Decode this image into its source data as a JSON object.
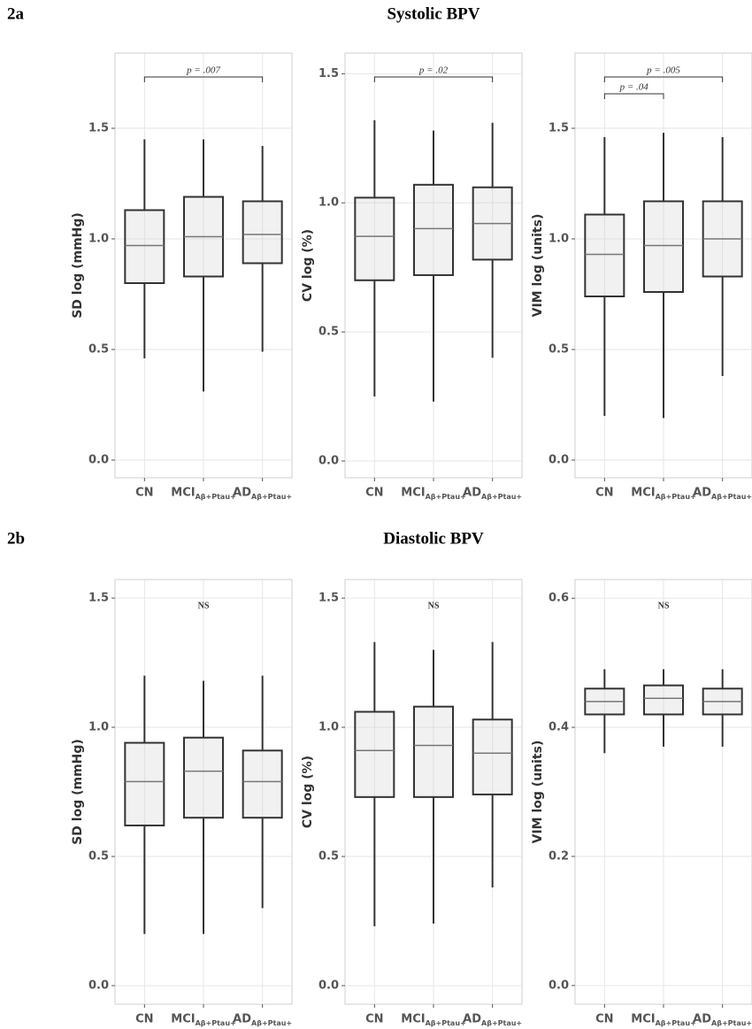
{
  "sections": [
    {
      "label": "2a",
      "title": "Systolic BPV"
    },
    {
      "label": "2b",
      "title": "Diastolic BPV"
    }
  ],
  "chart_data": [
    {
      "type": "box",
      "ylabel": "SD log (mmHg)",
      "categories": [
        "CN",
        "MCI",
        "AD"
      ],
      "category_subscripts": [
        null,
        "Aβ+Ptau+",
        "Aβ+Ptau+"
      ],
      "ylim": [
        -0.08,
        1.84
      ],
      "yticks": [
        {
          "value": 0,
          "label": "0.0"
        },
        {
          "value": 0.5,
          "label": "0.5"
        },
        {
          "value": 1,
          "label": "1.0"
        },
        {
          "value": 1.5,
          "label": "1.5"
        }
      ],
      "grid": true,
      "boxes": [
        {
          "low": 0.46,
          "q1": 0.8,
          "median": 0.97,
          "q3": 1.13,
          "high": 1.45
        },
        {
          "low": 0.31,
          "q1": 0.83,
          "median": 1.01,
          "q3": 1.19,
          "high": 1.45
        },
        {
          "low": 0.49,
          "q1": 0.89,
          "median": 1.02,
          "q3": 1.17,
          "high": 1.42
        }
      ],
      "brackets": [
        {
          "from": "CN",
          "to": "AD",
          "label": "p = .007"
        }
      ]
    },
    {
      "type": "box",
      "ylabel": "CV log (%)",
      "categories": [
        "CN",
        "MCI",
        "AD"
      ],
      "category_subscripts": [
        null,
        "Aβ+Ptau+",
        "Aβ+Ptau+"
      ],
      "ylim": [
        -0.065,
        1.58
      ],
      "yticks": [
        {
          "value": 0,
          "label": "0.0"
        },
        {
          "value": 0.5,
          "label": "0.5"
        },
        {
          "value": 1,
          "label": "1.0"
        },
        {
          "value": 1.5,
          "label": "1.5"
        }
      ],
      "grid": true,
      "boxes": [
        {
          "low": 0.25,
          "q1": 0.7,
          "median": 0.87,
          "q3": 1.02,
          "high": 1.32
        },
        {
          "low": 0.23,
          "q1": 0.72,
          "median": 0.9,
          "q3": 1.07,
          "high": 1.28
        },
        {
          "low": 0.4,
          "q1": 0.78,
          "median": 0.92,
          "q3": 1.06,
          "high": 1.31
        }
      ],
      "brackets": [
        {
          "from": "CN",
          "to": "AD",
          "label": "p = .02"
        }
      ]
    },
    {
      "type": "box",
      "ylabel": "VIM log (units)",
      "categories": [
        "CN",
        "MCI",
        "AD"
      ],
      "category_subscripts": [
        null,
        "Aβ+Ptau+",
        "Aβ+Ptau+"
      ],
      "ylim": [
        -0.08,
        1.84
      ],
      "yticks": [
        {
          "value": 0,
          "label": "0.0"
        },
        {
          "value": 0.5,
          "label": "0.5"
        },
        {
          "value": 1,
          "label": "1.0"
        },
        {
          "value": 1.5,
          "label": "1.5"
        }
      ],
      "grid": true,
      "boxes": [
        {
          "low": 0.2,
          "q1": 0.74,
          "median": 0.93,
          "q3": 1.11,
          "high": 1.46
        },
        {
          "low": 0.19,
          "q1": 0.76,
          "median": 0.97,
          "q3": 1.17,
          "high": 1.48
        },
        {
          "low": 0.38,
          "q1": 0.83,
          "median": 1.0,
          "q3": 1.17,
          "high": 1.46
        }
      ],
      "brackets": [
        {
          "from": "CN",
          "to": "AD",
          "label": "p = .005"
        },
        {
          "from": "CN",
          "to": "MCI",
          "label": "p = .04"
        }
      ]
    },
    {
      "type": "box",
      "ylabel": "SD log (mmHg)",
      "categories": [
        "CN",
        "MCI",
        "AD"
      ],
      "category_subscripts": [
        null,
        "Aβ+Ptau+",
        "Aβ+Ptau+"
      ],
      "ylim": [
        -0.072,
        1.572
      ],
      "yticks": [
        {
          "value": 0,
          "label": "0.0"
        },
        {
          "value": 0.5,
          "label": "0.5"
        },
        {
          "value": 1,
          "label": "1.0"
        },
        {
          "value": 1.5,
          "label": "1.5"
        }
      ],
      "grid": true,
      "boxes": [
        {
          "low": 0.2,
          "q1": 0.62,
          "median": 0.79,
          "q3": 0.94,
          "high": 1.2
        },
        {
          "low": 0.2,
          "q1": 0.65,
          "median": 0.83,
          "q3": 0.96,
          "high": 1.18
        },
        {
          "low": 0.3,
          "q1": 0.65,
          "median": 0.79,
          "q3": 0.91,
          "high": 1.2
        }
      ],
      "annotation": "NS"
    },
    {
      "type": "box",
      "ylabel": "CV log (%)",
      "categories": [
        "CN",
        "MCI",
        "AD"
      ],
      "category_subscripts": [
        null,
        "Aβ+Ptau+",
        "Aβ+Ptau+"
      ],
      "ylim": [
        -0.072,
        1.572
      ],
      "yticks": [
        {
          "value": 0,
          "label": "0.0"
        },
        {
          "value": 0.5,
          "label": "0.5"
        },
        {
          "value": 1,
          "label": "1.0"
        },
        {
          "value": 1.5,
          "label": "1.5"
        }
      ],
      "grid": true,
      "boxes": [
        {
          "low": 0.23,
          "q1": 0.73,
          "median": 0.91,
          "q3": 1.06,
          "high": 1.33
        },
        {
          "low": 0.24,
          "q1": 0.73,
          "median": 0.93,
          "q3": 1.08,
          "high": 1.3
        },
        {
          "low": 0.38,
          "q1": 0.74,
          "median": 0.9,
          "q3": 1.03,
          "high": 1.33
        }
      ],
      "annotation": "NS"
    },
    {
      "type": "box",
      "ylabel": "VIM log (units)",
      "categories": [
        "CN",
        "MCI",
        "AD"
      ],
      "category_subscripts": [
        null,
        "Aβ+Ptau+",
        "Aβ+Ptau+"
      ],
      "ylim": [
        -0.029,
        0.629
      ],
      "yticks": [
        {
          "value": 0,
          "label": "0.0"
        },
        {
          "value": 0.2,
          "label": "0.2"
        },
        {
          "value": 0.4,
          "label": "0.4"
        },
        {
          "value": 0.6,
          "label": "0.6"
        }
      ],
      "grid": true,
      "boxes": [
        {
          "low": 0.36,
          "q1": 0.42,
          "median": 0.44,
          "q3": 0.46,
          "high": 0.49
        },
        {
          "low": 0.37,
          "q1": 0.42,
          "median": 0.445,
          "q3": 0.465,
          "high": 0.49
        },
        {
          "low": 0.37,
          "q1": 0.42,
          "median": 0.44,
          "q3": 0.46,
          "high": 0.49
        }
      ],
      "annotation": "NS"
    }
  ]
}
